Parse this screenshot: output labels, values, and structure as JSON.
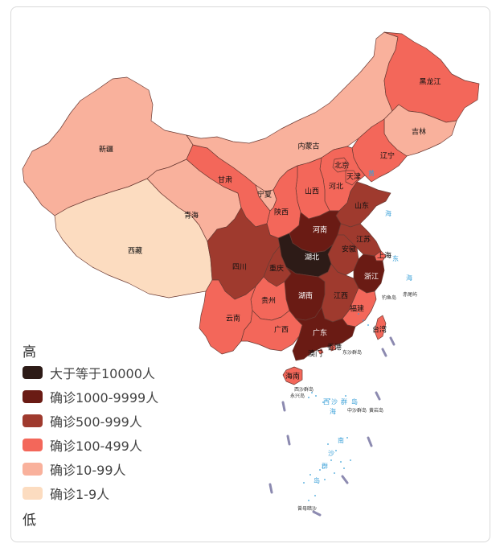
{
  "colors": {
    "c1": "#2d1b17",
    "c2": "#6a1b14",
    "c3": "#9f3a2e",
    "c4": "#f3675a",
    "c5": "#f9b19c",
    "c6": "#fcdcc0"
  },
  "legend": {
    "high": "高",
    "low": "低",
    "items": [
      {
        "label": "大于等于10000人",
        "color": "#2d1b17"
      },
      {
        "label": "确诊1000-9999人",
        "color": "#6a1b14"
      },
      {
        "label": "确诊500-999人",
        "color": "#9f3a2e"
      },
      {
        "label": "确诊100-499人",
        "color": "#f3675a"
      },
      {
        "label": "确诊10-99人",
        "color": "#f9b19c"
      },
      {
        "label": "确诊1-9人",
        "color": "#fcdcc0"
      }
    ]
  },
  "provinces": [
    {
      "name": "黑龙江",
      "level": 4
    },
    {
      "name": "吉林",
      "level": 5
    },
    {
      "name": "辽宁",
      "level": 4
    },
    {
      "name": "内蒙古",
      "level": 5
    },
    {
      "name": "新疆",
      "level": 5
    },
    {
      "name": "西藏",
      "level": 6
    },
    {
      "name": "青海",
      "level": 5
    },
    {
      "name": "甘肃",
      "level": 4
    },
    {
      "name": "宁夏",
      "level": 5
    },
    {
      "name": "陕西",
      "level": 4
    },
    {
      "name": "山西",
      "level": 4
    },
    {
      "name": "河北",
      "level": 4
    },
    {
      "name": "北京",
      "level": 4
    },
    {
      "name": "天津",
      "level": 4
    },
    {
      "name": "山东",
      "level": 3
    },
    {
      "name": "河南",
      "level": 2
    },
    {
      "name": "江苏",
      "level": 3
    },
    {
      "name": "安徽",
      "level": 3
    },
    {
      "name": "上海",
      "level": 4
    },
    {
      "name": "湖北",
      "level": 1
    },
    {
      "name": "四川",
      "level": 3
    },
    {
      "name": "重庆",
      "level": 3
    },
    {
      "name": "浙江",
      "level": 2
    },
    {
      "name": "湖南",
      "level": 2
    },
    {
      "name": "江西",
      "level": 3
    },
    {
      "name": "贵州",
      "level": 4
    },
    {
      "name": "福建",
      "level": 4
    },
    {
      "name": "云南",
      "level": 4
    },
    {
      "name": "广西",
      "level": 4
    },
    {
      "name": "广东",
      "level": 2
    },
    {
      "name": "台湾",
      "level": 4
    },
    {
      "name": "香港",
      "level": 4
    },
    {
      "name": "澳门",
      "level": 4
    },
    {
      "name": "海南",
      "level": 4
    }
  ],
  "sea_labels": [
    "黄",
    "海",
    "东",
    "海",
    "南",
    "沙",
    "群",
    "岛",
    "西",
    "沙",
    "群",
    "岛"
  ],
  "island_labels": {
    "dongsha": "东沙群岛",
    "xisha": "西沙群岛",
    "yongxing": "永兴岛",
    "zhongsha": "中沙群岛",
    "huangyan": "黄岩岛",
    "diaoyu": "钓鱼岛",
    "chiwei": "赤尾屿",
    "zengmu": "曾母暗沙",
    "nan": "南",
    "hai": "海"
  }
}
